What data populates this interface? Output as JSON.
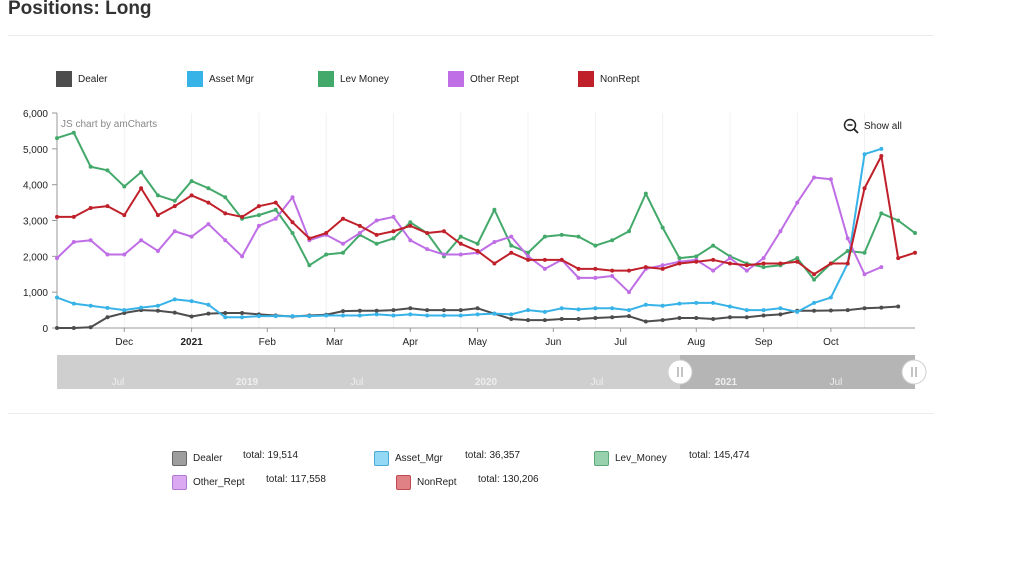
{
  "page": {
    "title": "Positions: Long"
  },
  "controls": {
    "show_all_label": "Show all",
    "credit": "JS chart by amCharts"
  },
  "chart_data": {
    "type": "line",
    "title": "Positions: Long",
    "xlabel": "",
    "ylabel": "",
    "ylim": [
      0,
      6000
    ],
    "y_ticks": [
      "0",
      "1,000",
      "2,000",
      "3,000",
      "4,000",
      "5,000",
      "6,000"
    ],
    "x_tick_labels": [
      {
        "label": "Dec",
        "at": 4,
        "bold": false
      },
      {
        "label": "2021",
        "at": 8,
        "bold": true
      },
      {
        "label": "Feb",
        "at": 12.5,
        "bold": false
      },
      {
        "label": "Mar",
        "at": 16.5,
        "bold": false
      },
      {
        "label": "Apr",
        "at": 21,
        "bold": false
      },
      {
        "label": "May",
        "at": 25,
        "bold": false
      },
      {
        "label": "Jun",
        "at": 29.5,
        "bold": false
      },
      {
        "label": "Jul",
        "at": 33.5,
        "bold": false
      },
      {
        "label": "Aug",
        "at": 38,
        "bold": false
      },
      {
        "label": "Sep",
        "at": 42,
        "bold": false
      },
      {
        "label": "Oct",
        "at": 46,
        "bold": false
      }
    ],
    "series": [
      {
        "name": "Dealer",
        "color": "#4d4d4d",
        "values": [
          0,
          0,
          20,
          300,
          420,
          500,
          480,
          430,
          320,
          400,
          420,
          420,
          380,
          350,
          320,
          350,
          370,
          470,
          480,
          480,
          500,
          550,
          500,
          500,
          500,
          550,
          400,
          250,
          220,
          220,
          250,
          250,
          280,
          300,
          330,
          180,
          220,
          280,
          280,
          250,
          300,
          300,
          350,
          380,
          480,
          480,
          490,
          500,
          550,
          570,
          600
        ]
      },
      {
        "name": "Asset Mgr",
        "color": "#38b3e8",
        "values": [
          850,
          680,
          620,
          560,
          500,
          570,
          620,
          800,
          750,
          650,
          300,
          300,
          330,
          330,
          330,
          330,
          350,
          350,
          350,
          380,
          350,
          380,
          350,
          350,
          350,
          380,
          400,
          380,
          500,
          450,
          550,
          520,
          550,
          550,
          500,
          650,
          620,
          680,
          700,
          700,
          600,
          500,
          500,
          550,
          450,
          700,
          850,
          1800,
          4850,
          5000
        ]
      },
      {
        "name": "Lev Money",
        "color": "#43a96a",
        "values": [
          5300,
          5450,
          4500,
          4400,
          3950,
          4350,
          3700,
          3550,
          4100,
          3900,
          3650,
          3050,
          3150,
          3300,
          2650,
          1750,
          2050,
          2100,
          2600,
          2350,
          2500,
          2950,
          2650,
          2000,
          2550,
          2350,
          3300,
          2300,
          2100,
          2550,
          2600,
          2550,
          2300,
          2450,
          2700,
          3750,
          2800,
          1950,
          2000,
          2300,
          2000,
          1800,
          1700,
          1750,
          1950,
          1350,
          1800,
          2150,
          2100,
          3200,
          3000,
          2650
        ]
      },
      {
        "name": "Other Rept",
        "color": "#bf6ee6",
        "values": [
          1950,
          2400,
          2450,
          2050,
          2050,
          2450,
          2150,
          2700,
          2550,
          2900,
          2450,
          2000,
          2850,
          3050,
          3650,
          2450,
          2600,
          2350,
          2650,
          3000,
          3100,
          2450,
          2200,
          2050,
          2050,
          2100,
          2400,
          2550,
          2000,
          1650,
          1900,
          1400,
          1400,
          1450,
          1000,
          1650,
          1750,
          1850,
          1900,
          1600,
          1950,
          1600,
          1950,
          2700,
          3500,
          4200,
          4150,
          2500,
          1500,
          1700
        ]
      },
      {
        "name": "NonRept",
        "color": "#c0202a",
        "values": [
          3100,
          3100,
          3350,
          3400,
          3150,
          3900,
          3150,
          3400,
          3700,
          3500,
          3200,
          3100,
          3400,
          3500,
          2950,
          2500,
          2650,
          3050,
          2850,
          2600,
          2700,
          2850,
          2650,
          2700,
          2350,
          2150,
          1800,
          2100,
          1900,
          1900,
          1900,
          1650,
          1650,
          1600,
          1600,
          1700,
          1650,
          1800,
          1850,
          1900,
          1800,
          1750,
          1800,
          1800,
          1850,
          1500,
          1800,
          1800,
          3900,
          4800,
          1950,
          2100
        ]
      }
    ],
    "scrollbar": {
      "labels": [
        {
          "label": "Jul",
          "bold": false
        },
        {
          "label": "2019",
          "bold": true
        },
        {
          "label": "Jul",
          "bold": false
        },
        {
          "label": "2020",
          "bold": true
        },
        {
          "label": "Jul",
          "bold": false
        },
        {
          "label": "2021",
          "bold": true
        },
        {
          "label": "Jul",
          "bold": false
        }
      ]
    },
    "legend_totals": [
      {
        "name": "Dealer",
        "total_label": "total:",
        "total": "19,514",
        "color": "#9e9e9e",
        "border": "#666666"
      },
      {
        "name": "Asset_Mgr",
        "total_label": "total:",
        "total": "36,357",
        "color": "#93d8f5",
        "border": "#4aa9d6"
      },
      {
        "name": "Lev_Money",
        "total_label": "total:",
        "total": "145,474",
        "color": "#98d1ad",
        "border": "#5aa878"
      },
      {
        "name": "Other_Rept",
        "total_label": "total:",
        "total": "117,558",
        "color": "#dba9f2",
        "border": "#b07ad0"
      },
      {
        "name": "NonRept",
        "total_label": "total:",
        "total": "130,206",
        "color": "#e08285",
        "border": "#c04a4f"
      }
    ]
  }
}
